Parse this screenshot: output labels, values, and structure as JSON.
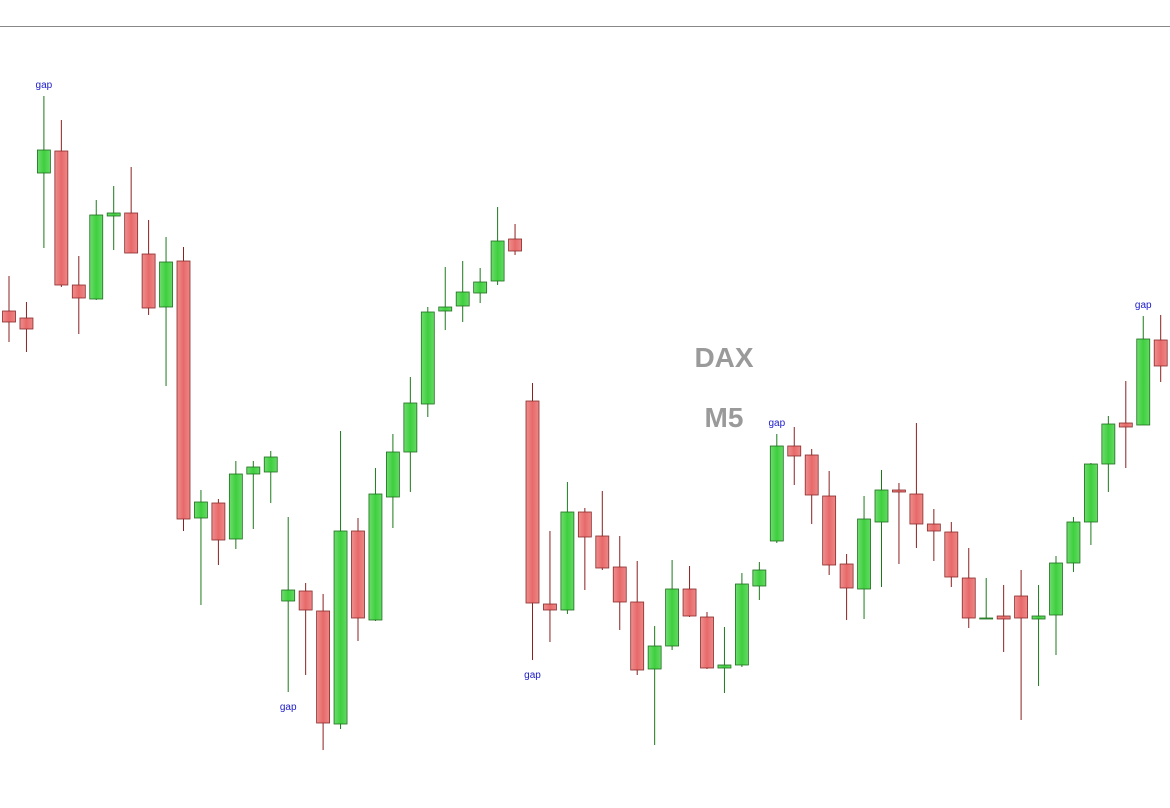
{
  "chart_data": {
    "type": "candlestick",
    "symbol": "DAX",
    "timeframe": "M5",
    "up_color": "#3fd03f",
    "down_color": "#e86a6a",
    "ylim": [
      0,
      808
    ],
    "open": [
      497,
      490,
      635,
      657,
      523,
      509,
      592,
      595,
      554,
      501,
      547,
      290,
      305,
      269,
      334,
      336,
      207,
      217,
      197,
      84,
      277,
      188,
      311,
      356,
      404,
      497,
      502,
      515,
      527,
      569,
      407,
      204,
      198,
      296,
      272,
      241,
      206,
      139,
      162,
      219,
      191,
      140,
      143,
      222,
      267,
      362,
      353,
      312,
      244,
      219,
      286,
      318,
      314,
      284,
      276,
      230,
      190,
      192,
      212,
      189,
      193,
      245,
      286,
      344,
      385,
      383,
      468
    ],
    "close": [
      486,
      479,
      658,
      523,
      510,
      593,
      595,
      555,
      500,
      546,
      289,
      306,
      268,
      334,
      341,
      351,
      218,
      198,
      85,
      277,
      190,
      314,
      356,
      405,
      496,
      501,
      516,
      526,
      567,
      557,
      205,
      198,
      296,
      271,
      240,
      206,
      138,
      162,
      219,
      192,
      140,
      143,
      224,
      238,
      362,
      352,
      313,
      243,
      220,
      289,
      318,
      316,
      284,
      277,
      231,
      190,
      190,
      189,
      190,
      192,
      245,
      286,
      344,
      384,
      381,
      469,
      442
    ],
    "high": [
      532,
      506,
      712,
      688,
      552,
      608,
      622,
      641,
      588,
      571,
      561,
      318,
      309,
      347,
      347,
      357,
      291,
      225,
      214,
      377,
      290,
      340,
      374,
      431,
      501,
      541,
      547,
      540,
      601,
      584,
      425,
      277,
      326,
      300,
      317,
      272,
      247,
      182,
      248,
      242,
      196,
      181,
      235,
      246,
      374,
      381,
      359,
      337,
      254,
      312,
      338,
      325,
      385,
      299,
      286,
      260,
      230,
      223,
      238,
      223,
      252,
      291,
      345,
      392,
      427,
      492,
      493
    ],
    "low": [
      466,
      456,
      560,
      521,
      474,
      508,
      558,
      555,
      493,
      422,
      277,
      203,
      243,
      259,
      279,
      305,
      116,
      133,
      58,
      79,
      167,
      187,
      280,
      316,
      391,
      478,
      486,
      505,
      523,
      553,
      148,
      166,
      194,
      218,
      238,
      178,
      133,
      63,
      158,
      191,
      139,
      115,
      141,
      208,
      265,
      323,
      284,
      233,
      188,
      189,
      221,
      244,
      260,
      247,
      221,
      180,
      190,
      156,
      88,
      122,
      153,
      236,
      263,
      316,
      340,
      383,
      426
    ],
    "annotations": [
      {
        "text": "gap",
        "index": 2,
        "position": "above"
      },
      {
        "text": "gap",
        "index": 16,
        "position": "below"
      },
      {
        "text": "gap",
        "index": 30,
        "position": "below"
      },
      {
        "text": "gap",
        "index": 44,
        "position": "above"
      },
      {
        "text": "gap",
        "index": 65,
        "position": "above"
      }
    ]
  }
}
